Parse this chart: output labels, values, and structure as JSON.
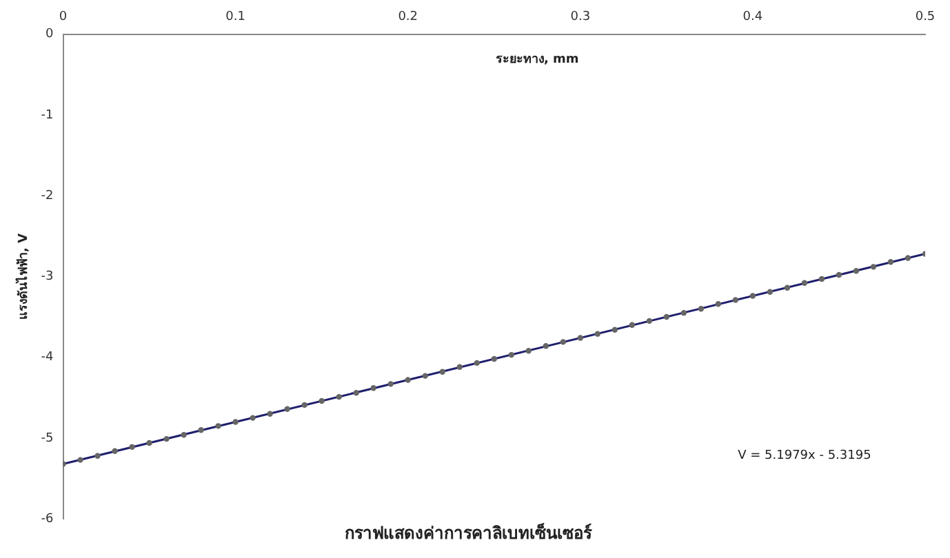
{
  "chart_data": {
    "type": "scatter",
    "title": "กราฟแสดงค่าการคาลิเบทเซ็นเซอร์",
    "xlabel": "ระยะทาง, mm",
    "ylabel": "แรงดันไฟฟ้า, V",
    "annotations": [
      "V = 5.1979x - 5.3195"
    ],
    "x": [
      0,
      0.01,
      0.02,
      0.03,
      0.04,
      0.05,
      0.06,
      0.07,
      0.08,
      0.09,
      0.1,
      0.11,
      0.12,
      0.13,
      0.14,
      0.15,
      0.16,
      0.17,
      0.18,
      0.19,
      0.2,
      0.21,
      0.22,
      0.23,
      0.24,
      0.25,
      0.26,
      0.27,
      0.28,
      0.29,
      0.3,
      0.31,
      0.32,
      0.33,
      0.34,
      0.35,
      0.36,
      0.37,
      0.38,
      0.39,
      0.4,
      0.41,
      0.42,
      0.43,
      0.44,
      0.45,
      0.46,
      0.47,
      0.48,
      0.49,
      0.5
    ],
    "series": [
      {
        "type": "scatter",
        "color": "#666666",
        "marker": "circle",
        "values": [
          -5.32,
          -5.27,
          -5.22,
          -5.16,
          -5.11,
          -5.06,
          -5.01,
          -4.96,
          -4.9,
          -4.85,
          -4.8,
          -4.75,
          -4.7,
          -4.64,
          -4.59,
          -4.54,
          -4.49,
          -4.44,
          -4.38,
          -4.33,
          -4.28,
          -4.23,
          -4.18,
          -4.12,
          -4.07,
          -4.02,
          -3.97,
          -3.92,
          -3.86,
          -3.81,
          -3.76,
          -3.71,
          -3.66,
          -3.6,
          -3.55,
          -3.5,
          -3.45,
          -3.4,
          -3.34,
          -3.29,
          -3.24,
          -3.19,
          -3.14,
          -3.08,
          -3.03,
          -2.98,
          -2.93,
          -2.88,
          -2.82,
          -2.77,
          -2.72
        ]
      },
      {
        "type": "line",
        "color": "#1f1f6e",
        "x": [
          0,
          0.5
        ],
        "values": [
          -5.32,
          -2.72
        ],
        "line_style": "solid"
      }
    ],
    "xlim": [
      0,
      0.5
    ],
    "xticks": [
      0,
      0.1,
      0.2,
      0.3,
      0.4,
      0.5
    ],
    "ylim": [
      -6,
      0
    ],
    "yticks": [
      -6,
      -5,
      -4,
      -3,
      -2,
      -1,
      0
    ],
    "grid": false,
    "legend": false
  }
}
